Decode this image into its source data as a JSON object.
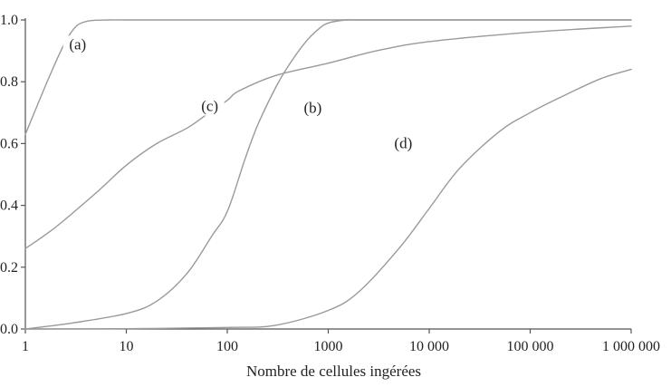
{
  "chart_data": {
    "type": "line",
    "title": "",
    "xlabel": "Nombre de cellules ingérées",
    "ylabel": "",
    "x_scale": "log",
    "xlim": [
      1,
      1000000
    ],
    "ylim": [
      0,
      1
    ],
    "x_ticks": [
      1,
      10,
      100,
      1000,
      10000,
      100000,
      1000000
    ],
    "x_tick_labels": [
      "1",
      "10",
      "100",
      "1000",
      "10 000",
      "100 000",
      "1 000 000"
    ],
    "y_ticks": [
      0,
      0.2,
      0.4,
      0.6,
      0.8,
      1.0
    ],
    "y_tick_labels": [
      "0.0",
      "0.2",
      "0.4",
      "0.6",
      "0.8",
      "1.0"
    ],
    "grid": false,
    "line_color": "#9a9a9a",
    "series": [
      {
        "label": "(a)",
        "x": [
          1,
          1.3,
          1.8,
          2.5,
          3.2,
          4,
          5,
          7,
          10,
          100,
          1000,
          10000,
          100000,
          1000000
        ],
        "y": [
          0.63,
          0.72,
          0.83,
          0.93,
          0.98,
          0.995,
          0.999,
          1.0,
          1.0,
          1.0,
          1.0,
          1.0,
          1.0,
          1.0
        ]
      },
      {
        "label": "(b)",
        "x": [
          1,
          3,
          10,
          20,
          40,
          70,
          100,
          150,
          200,
          300,
          400,
          600,
          800,
          1000,
          1500,
          2000,
          10000,
          100000,
          1000000
        ],
        "y": [
          0.0,
          0.02,
          0.05,
          0.09,
          0.18,
          0.3,
          0.38,
          0.55,
          0.66,
          0.78,
          0.85,
          0.93,
          0.97,
          0.99,
          1.0,
          1.0,
          1.0,
          1.0,
          1.0
        ]
      },
      {
        "label": "(c)",
        "x": [
          1,
          2,
          5,
          10,
          20,
          40,
          60,
          100,
          130,
          300,
          1000,
          3000,
          10000,
          100000,
          1000000
        ],
        "y": [
          0.26,
          0.33,
          0.44,
          0.53,
          0.6,
          0.65,
          0.69,
          0.74,
          0.77,
          0.82,
          0.86,
          0.9,
          0.93,
          0.96,
          0.98
        ]
      },
      {
        "label": "(d)",
        "x": [
          1,
          10,
          100,
          300,
          1000,
          2000,
          5000,
          10000,
          20000,
          50000,
          100000,
          200000,
          500000,
          1000000
        ],
        "y": [
          0.0,
          0.001,
          0.005,
          0.012,
          0.06,
          0.12,
          0.26,
          0.39,
          0.52,
          0.64,
          0.7,
          0.75,
          0.81,
          0.84
        ]
      }
    ]
  }
}
